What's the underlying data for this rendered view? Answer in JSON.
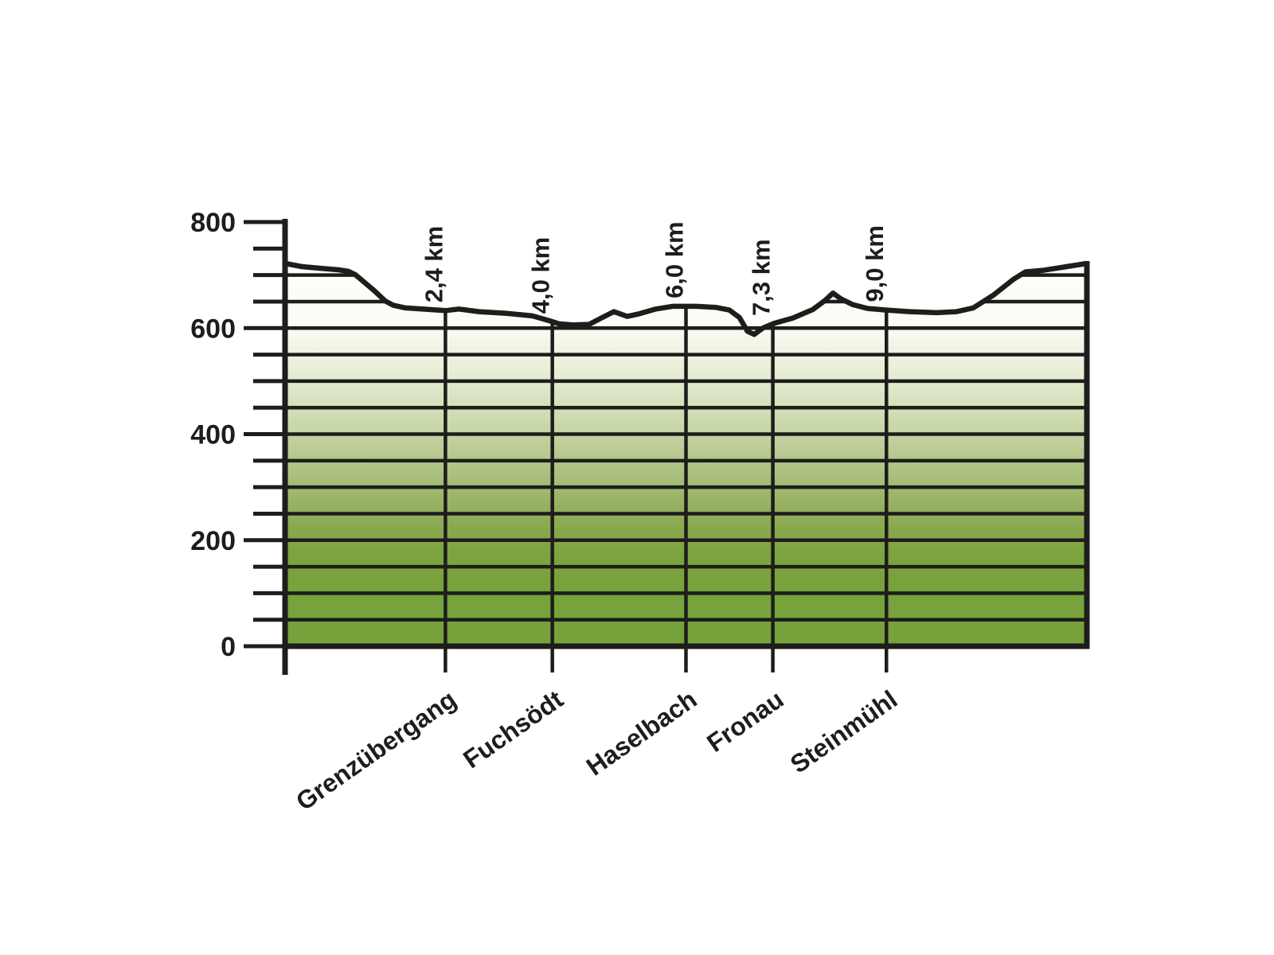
{
  "chart_data": {
    "type": "area",
    "title": "",
    "description": "Elevation profile of a route (Hoehenprofil), metres over kilometres",
    "y_axis": {
      "min": 0,
      "max": 800,
      "minor_tick_step": 50,
      "labeled_tick_step": 200,
      "tick_labels": [
        "800",
        "600",
        "400",
        "200",
        "0"
      ]
    },
    "x_axis": {
      "unit": "km",
      "total_km": 12.0
    },
    "gridlines": {
      "step_m": 50,
      "full_width_max_m": 600,
      "terrain_clipped_m": [
        650,
        700
      ]
    },
    "waypoints": [
      {
        "km": 2.4,
        "km_label": "2,4 km",
        "name": "Grenzübergang"
      },
      {
        "km": 4.0,
        "km_label": "4,0 km",
        "name": "Fuchsödt"
      },
      {
        "km": 6.0,
        "km_label": "6,0 km",
        "name": "Haselbach"
      },
      {
        "km": 7.3,
        "km_label": "7,3 km",
        "name": "Fronau"
      },
      {
        "km": 9.0,
        "km_label": "9,0 km",
        "name": "Steinmühl"
      }
    ],
    "profile_points_km_m": [
      [
        0.0,
        722
      ],
      [
        0.25,
        716
      ],
      [
        0.6,
        712
      ],
      [
        0.8,
        710
      ],
      [
        0.95,
        707
      ],
      [
        1.05,
        701
      ],
      [
        1.33,
        671
      ],
      [
        1.5,
        651
      ],
      [
        1.62,
        643
      ],
      [
        1.8,
        638
      ],
      [
        2.05,
        636
      ],
      [
        2.4,
        633
      ],
      [
        2.6,
        636
      ],
      [
        2.9,
        631
      ],
      [
        3.3,
        628
      ],
      [
        3.7,
        623
      ],
      [
        3.95,
        614
      ],
      [
        4.1,
        608
      ],
      [
        4.3,
        606
      ],
      [
        4.55,
        607
      ],
      [
        4.75,
        620
      ],
      [
        4.92,
        631
      ],
      [
        5.12,
        622
      ],
      [
        5.3,
        627
      ],
      [
        5.55,
        636
      ],
      [
        5.8,
        641
      ],
      [
        6.15,
        641
      ],
      [
        6.45,
        639
      ],
      [
        6.65,
        634
      ],
      [
        6.8,
        620
      ],
      [
        6.92,
        594
      ],
      [
        7.02,
        588
      ],
      [
        7.15,
        600
      ],
      [
        7.32,
        609
      ],
      [
        7.6,
        619
      ],
      [
        7.9,
        635
      ],
      [
        8.08,
        652
      ],
      [
        8.2,
        666
      ],
      [
        8.32,
        655
      ],
      [
        8.5,
        644
      ],
      [
        8.72,
        637
      ],
      [
        9.0,
        634
      ],
      [
        9.35,
        631
      ],
      [
        9.75,
        629
      ],
      [
        10.05,
        631
      ],
      [
        10.3,
        638
      ],
      [
        10.6,
        662
      ],
      [
        10.9,
        692
      ],
      [
        11.08,
        706
      ],
      [
        11.35,
        709
      ],
      [
        11.7,
        716
      ],
      [
        12.0,
        722
      ]
    ],
    "colors": {
      "line": "#1d1d1b",
      "background": "#ffffff",
      "terrain_gradient_stops": [
        {
          "m": 800,
          "color": "#ffffff"
        },
        {
          "m": 600,
          "color": "#fbfcf5"
        },
        {
          "m": 575,
          "color": "#f2f6e8"
        },
        {
          "m": 525,
          "color": "#e9efda"
        },
        {
          "m": 475,
          "color": "#dbe5c5"
        },
        {
          "m": 425,
          "color": "#ccdaae"
        },
        {
          "m": 375,
          "color": "#bccd96"
        },
        {
          "m": 325,
          "color": "#abc17e"
        },
        {
          "m": 275,
          "color": "#9ab366"
        },
        {
          "m": 225,
          "color": "#8aa950"
        },
        {
          "m": 175,
          "color": "#7da43f"
        },
        {
          "m": 125,
          "color": "#78a23c"
        },
        {
          "m": 0,
          "color": "#76a13b"
        }
      ]
    },
    "legend": null
  }
}
